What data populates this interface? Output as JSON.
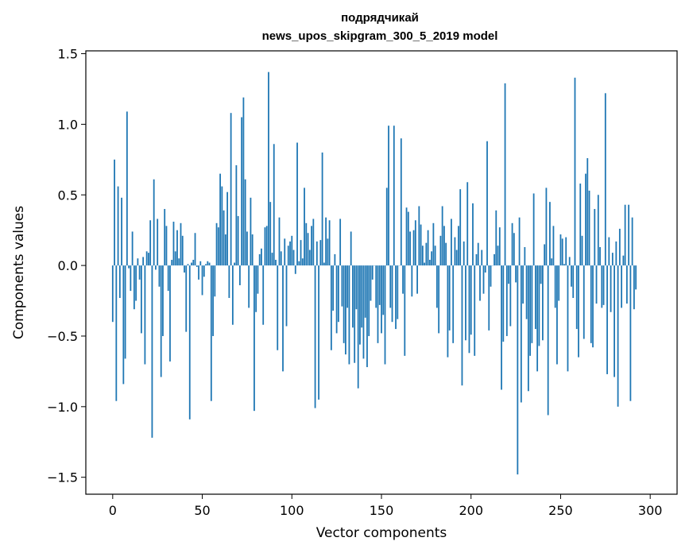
{
  "chart_data": {
    "type": "bar",
    "title": "подрядчикай",
    "subtitle": "news_upos_skipgram_300_5_2019 model",
    "xlabel": "Vector components",
    "ylabel": "Components values",
    "xlim": [
      -15,
      315
    ],
    "ylim": [
      -1.62,
      1.52
    ],
    "xticks": [
      0,
      50,
      100,
      150,
      200,
      250,
      300
    ],
    "xtick_labels": [
      "0",
      "50",
      "100",
      "150",
      "200",
      "250",
      "300"
    ],
    "yticks": [
      -1.5,
      -1.0,
      -0.5,
      0.0,
      0.5,
      1.0,
      1.5
    ],
    "ytick_labels": [
      "−1.5",
      "−1.0",
      "−0.5",
      "0.0",
      "0.5",
      "1.0",
      "1.5"
    ],
    "grid": false,
    "bar_color": "#1f77b4",
    "x_start": 0,
    "values": [
      -0.4,
      0.75,
      -0.96,
      0.56,
      -0.23,
      0.48,
      -0.84,
      -0.66,
      1.09,
      -0.02,
      -0.18,
      0.24,
      -0.31,
      -0.25,
      0.05,
      -0.1,
      -0.48,
      0.06,
      -0.7,
      0.1,
      0.09,
      0.32,
      -1.22,
      0.61,
      -0.03,
      0.33,
      -0.15,
      -0.79,
      -0.5,
      0.4,
      0.28,
      -0.18,
      -0.68,
      0.04,
      0.31,
      0.1,
      0.25,
      0.05,
      0.3,
      0.21,
      -0.05,
      -0.47,
      0.01,
      -1.09,
      0.02,
      0.04,
      0.23,
      -0.01,
      -0.1,
      0.03,
      -0.21,
      -0.08,
      0.01,
      0.03,
      0.02,
      -0.96,
      -0.5,
      -0.22,
      0.3,
      0.27,
      0.65,
      0.56,
      0.39,
      0.22,
      0.52,
      -0.23,
      1.08,
      -0.42,
      0.02,
      0.71,
      0.35,
      -0.14,
      1.05,
      1.19,
      0.61,
      0.24,
      -0.3,
      0.48,
      0.22,
      -1.03,
      -0.33,
      -0.2,
      0.08,
      0.12,
      -0.42,
      0.27,
      0.28,
      1.37,
      0.45,
      0.09,
      0.86,
      0.04,
      -0.6,
      0.34,
      0.1,
      -0.75,
      0.19,
      -0.43,
      0.14,
      0.17,
      0.21,
      0.11,
      -0.06,
      0.87,
      0.03,
      0.18,
      0.05,
      0.55,
      0.3,
      0.23,
      0.11,
      0.28,
      0.33,
      -1.01,
      0.17,
      -0.95,
      0.18,
      0.8,
      0.02,
      0.34,
      0.19,
      0.32,
      -0.6,
      -0.32,
      0.08,
      -0.48,
      -0.4,
      0.33,
      -0.29,
      -0.55,
      -0.63,
      -0.3,
      -0.7,
      0.24,
      -0.44,
      -0.69,
      -0.31,
      -0.87,
      -0.56,
      -0.44,
      -0.66,
      -0.37,
      -0.72,
      -0.5,
      -0.25,
      -0.1,
      0.0,
      -0.3,
      -0.55,
      -0.28,
      -0.48,
      -0.35,
      -0.7,
      0.55,
      0.99,
      -0.3,
      -0.4,
      0.99,
      -0.45,
      -0.38,
      0.0,
      0.9,
      -0.2,
      -0.64,
      0.41,
      0.38,
      0.24,
      -0.22,
      0.25,
      0.32,
      -0.2,
      0.42,
      0.29,
      0.14,
      0.02,
      0.16,
      0.25,
      0.04,
      0.1,
      0.3,
      0.14,
      -0.3,
      -0.48,
      0.21,
      0.42,
      0.28,
      0.16,
      -0.65,
      -0.46,
      0.33,
      -0.55,
      0.2,
      0.11,
      0.28,
      0.54,
      -0.85,
      0.17,
      -0.53,
      0.59,
      -0.62,
      -0.49,
      0.44,
      -0.64,
      0.08,
      0.16,
      -0.25,
      0.11,
      -0.2,
      -0.05,
      0.88,
      -0.46,
      -0.15,
      0.0,
      0.08,
      0.39,
      0.14,
      0.27,
      -0.88,
      -0.54,
      1.29,
      -0.5,
      -0.13,
      -0.43,
      0.3,
      0.23,
      -0.12,
      -1.48,
      0.34,
      -0.97,
      -0.27,
      0.13,
      -0.38,
      -0.89,
      -0.64,
      -0.55,
      0.51,
      -0.45,
      -0.75,
      -0.57,
      -0.13,
      -0.53,
      0.15,
      0.55,
      -1.06,
      0.45,
      0.05,
      0.28,
      -0.3,
      -0.7,
      -0.25,
      0.22,
      0.19,
      0.01,
      0.2,
      -0.75,
      0.06,
      -0.15,
      -0.23,
      1.33,
      -0.45,
      -0.65,
      0.58,
      0.21,
      -0.52,
      0.65,
      0.76,
      0.53,
      -0.55,
      -0.58,
      0.4,
      -0.27,
      0.5,
      0.13,
      -0.3,
      -0.28,
      1.22,
      -0.77,
      0.2,
      -0.33,
      0.09,
      -0.79,
      0.17,
      -1.0,
      0.26,
      -0.3,
      0.07,
      0.43,
      -0.27,
      0.43,
      -0.96,
      0.34,
      -0.31,
      -0.17
    ]
  }
}
